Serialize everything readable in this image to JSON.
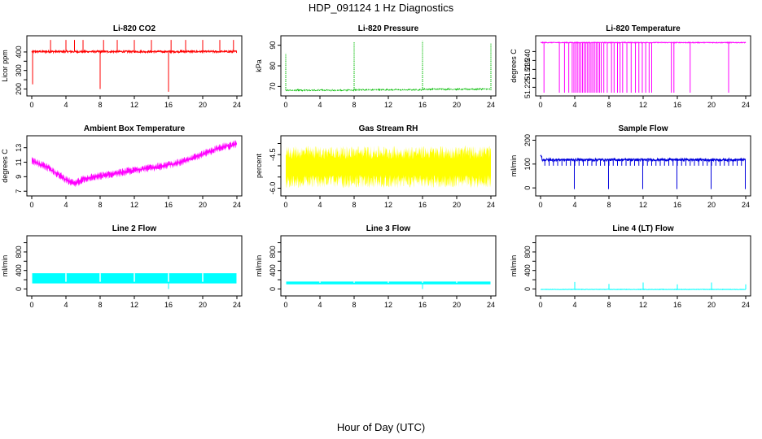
{
  "figure": {
    "title": "HDP_091124  1 Hz Diagnostics",
    "xlabel": "Hour of Day (UTC)"
  },
  "chart_data": [
    {
      "type": "line",
      "title": "Li-820 CO2",
      "ylabel": "Licor ppm",
      "color": "#ff0000",
      "xlim": [
        0,
        24
      ],
      "ylim": [
        180,
        470
      ],
      "xticks": [
        0,
        4,
        8,
        12,
        16,
        20,
        24
      ],
      "yticks": [
        200,
        250,
        300,
        350,
        400
      ],
      "yticklabels": [
        "200",
        "",
        "300",
        "",
        "400"
      ],
      "pattern": {
        "kind": "co2",
        "base": 402,
        "noise": 5,
        "spikes_up": [
          2.2,
          4.0,
          5.0,
          6.0,
          8.4,
          10.0,
          12.0,
          14.0,
          16.3,
          18.0,
          20.0,
          22.0,
          23.6
        ],
        "spike_up_to": 465,
        "spikes_down": [
          {
            "x": 0.1,
            "y": 225
          },
          {
            "x": 8.0,
            "y": 200
          },
          {
            "x": 16.0,
            "y": 185
          }
        ]
      }
    },
    {
      "type": "line",
      "title": "Li-820 Pressure",
      "ylabel": "kPa",
      "color": "#00bb00",
      "xlim": [
        0,
        24
      ],
      "ylim": [
        67,
        93
      ],
      "xticks": [
        0,
        4,
        8,
        12,
        16,
        20,
        24
      ],
      "yticks": [
        70,
        80,
        90
      ],
      "yticklabels": [
        "70",
        "80",
        "90"
      ],
      "pattern": {
        "kind": "pressure",
        "base": 68.2,
        "noise": 0.25,
        "spikes": [
          {
            "x": 0.0,
            "y": 86
          },
          {
            "x": 8.0,
            "y": 91.5
          },
          {
            "x": 16.0,
            "y": 92
          },
          {
            "x": 24.0,
            "y": 91
          }
        ]
      }
    },
    {
      "type": "line",
      "title": "Li-820 Temperature",
      "ylabel": "degrees C",
      "color": "#ff00ff",
      "xlim": [
        0,
        24
      ],
      "ylim": [
        51.222,
        51.252
      ],
      "xticks": [
        0,
        4,
        8,
        12,
        16,
        20,
        24
      ],
      "yticks": [
        51.225,
        51.23,
        51.235,
        51.24,
        51.245
      ],
      "yticklabels": [
        "51.225",
        "",
        "51.235",
        "51.240",
        ""
      ],
      "pattern": {
        "kind": "licortemp",
        "base": 51.25,
        "low": 51.222
      }
    },
    {
      "type": "line",
      "title": "Ambient Box Temperature",
      "ylabel": "degrees C",
      "color": "#ff00ff",
      "xlim": [
        0,
        24
      ],
      "ylim": [
        6.8,
        14.2
      ],
      "xticks": [
        0,
        4,
        8,
        12,
        16,
        20,
        24
      ],
      "yticks": [
        7,
        9,
        11,
        13
      ],
      "yticklabels": [
        "7",
        "9",
        "11",
        "13"
      ],
      "pattern": {
        "kind": "ambient",
        "curve": [
          [
            0,
            11.2
          ],
          [
            2,
            10.2
          ],
          [
            4,
            8.6
          ],
          [
            5,
            8.0
          ],
          [
            6,
            8.7
          ],
          [
            8,
            9.1
          ],
          [
            12,
            9.9
          ],
          [
            16,
            10.6
          ],
          [
            18,
            11.2
          ],
          [
            20,
            12.1
          ],
          [
            22,
            13.0
          ],
          [
            24,
            13.5
          ]
        ],
        "noise": 0.6
      }
    },
    {
      "type": "line",
      "title": "Gas Stream RH",
      "ylabel": "percent",
      "color": "#ffff00",
      "xlim": [
        0,
        24
      ],
      "ylim": [
        -6.2,
        -3.8
      ],
      "xticks": [
        0,
        4,
        8,
        12,
        16,
        20,
        24
      ],
      "yticks": [
        -6.0,
        -5.5,
        -5.0,
        -4.5,
        -4.0
      ],
      "yticklabels": [
        "-6.0",
        "",
        "",
        "-4.5",
        ""
      ],
      "pattern": {
        "kind": "rh",
        "center": -5.05,
        "noise": 0.6
      }
    },
    {
      "type": "line",
      "title": "Sample Flow",
      "ylabel": "ml/min",
      "color": "#0000dd",
      "xlim": [
        0,
        24
      ],
      "ylim": [
        -20,
        205
      ],
      "xticks": [
        0,
        4,
        8,
        12,
        16,
        20,
        24
      ],
      "yticks": [
        0,
        100,
        200
      ],
      "yticklabels": [
        "0",
        "100",
        "200"
      ],
      "pattern": {
        "kind": "sampleflow",
        "base": 118,
        "noise": 5,
        "dips": [
          4,
          8,
          12,
          16,
          20,
          24
        ],
        "dip_to": -5
      }
    },
    {
      "type": "line",
      "title": "Line 2 Flow",
      "ylabel": "ml/min",
      "color": "#00ffff",
      "xlim": [
        0,
        24
      ],
      "ylim": [
        -80,
        1080
      ],
      "xticks": [
        0,
        4,
        8,
        12,
        16,
        20,
        24
      ],
      "yticks": [
        0,
        200,
        400,
        600,
        800,
        1000
      ],
      "yticklabels": [
        "0",
        "",
        "400",
        "",
        "800",
        ""
      ],
      "pattern": {
        "kind": "band",
        "low": 120,
        "high": 340,
        "gaps": [
          4,
          8,
          12,
          16,
          20
        ]
      }
    },
    {
      "type": "line",
      "title": "Line 3 Flow",
      "ylabel": "ml/min",
      "color": "#00ffff",
      "xlim": [
        0,
        24
      ],
      "ylim": [
        -80,
        1080
      ],
      "xticks": [
        0,
        4,
        8,
        12,
        16,
        20,
        24
      ],
      "yticks": [
        0,
        200,
        400,
        600,
        800,
        1000
      ],
      "yticklabels": [
        "0",
        "",
        "400",
        "",
        "800",
        ""
      ],
      "pattern": {
        "kind": "band",
        "low": 100,
        "high": 160,
        "gaps": [
          4,
          8,
          12,
          16,
          20
        ]
      }
    },
    {
      "type": "line",
      "title": "Line 4 (LT) Flow",
      "ylabel": "ml/min",
      "color": "#00ffff",
      "xlim": [
        0,
        24
      ],
      "ylim": [
        -80,
        1080
      ],
      "xticks": [
        0,
        4,
        8,
        12,
        16,
        20,
        24
      ],
      "yticks": [
        0,
        200,
        400,
        600,
        800,
        1000
      ],
      "yticklabels": [
        "0",
        "",
        "400",
        "",
        "800",
        ""
      ],
      "pattern": {
        "kind": "lt",
        "base": -10,
        "spikes": [
          {
            "x": 4.0,
            "y": 150
          },
          {
            "x": 8.0,
            "y": 110
          },
          {
            "x": 12.0,
            "y": 140
          },
          {
            "x": 16.0,
            "y": 100
          },
          {
            "x": 20.0,
            "y": 140
          },
          {
            "x": 24.0,
            "y": 100
          }
        ]
      }
    }
  ]
}
